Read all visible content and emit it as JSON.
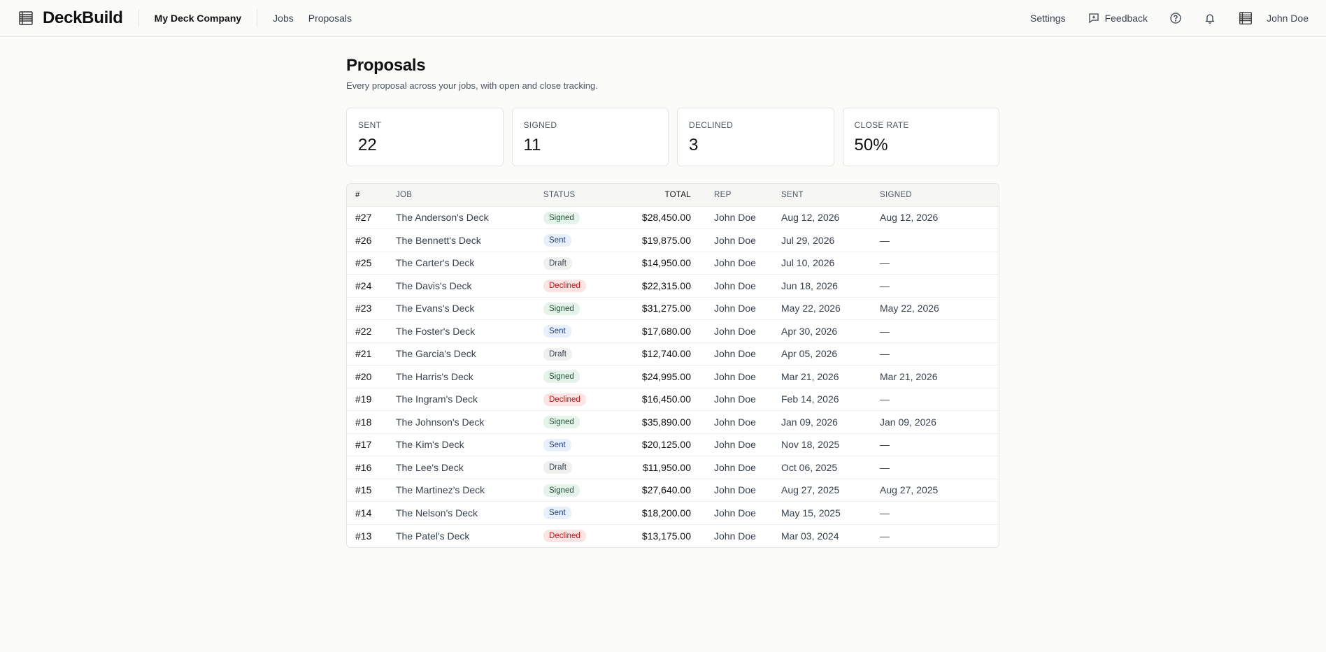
{
  "app": {
    "name": "DeckBuild",
    "company": "My Deck Company"
  },
  "nav": {
    "jobs": "Jobs",
    "proposals": "Proposals"
  },
  "header_right": {
    "settings": "Settings",
    "feedback": "Feedback",
    "user": "John Doe"
  },
  "page": {
    "title": "Proposals",
    "subtitle": "Every proposal across your jobs, with open and close tracking."
  },
  "stats": [
    {
      "label": "SENT",
      "value": "22"
    },
    {
      "label": "SIGNED",
      "value": "11"
    },
    {
      "label": "DECLINED",
      "value": "3"
    },
    {
      "label": "CLOSE RATE",
      "value": "50%"
    }
  ],
  "table": {
    "columns": [
      "#",
      "JOB",
      "STATUS",
      "TOTAL",
      "REP",
      "SENT",
      "SIGNED"
    ],
    "rows": [
      {
        "num": "#27",
        "job": "The Anderson's Deck",
        "status": "Signed",
        "total": "$28,450.00",
        "rep": "John Doe",
        "sent": "Aug 12, 2026",
        "signed": "Aug 12, 2026"
      },
      {
        "num": "#26",
        "job": "The Bennett's Deck",
        "status": "Sent",
        "total": "$19,875.00",
        "rep": "John Doe",
        "sent": "Jul 29, 2026",
        "signed": "—"
      },
      {
        "num": "#25",
        "job": "The Carter's Deck",
        "status": "Draft",
        "total": "$14,950.00",
        "rep": "John Doe",
        "sent": "Jul 10, 2026",
        "signed": "—"
      },
      {
        "num": "#24",
        "job": "The Davis's Deck",
        "status": "Declined",
        "total": "$22,315.00",
        "rep": "John Doe",
        "sent": "Jun 18, 2026",
        "signed": "—"
      },
      {
        "num": "#23",
        "job": "The Evans's Deck",
        "status": "Signed",
        "total": "$31,275.00",
        "rep": "John Doe",
        "sent": "May 22, 2026",
        "signed": "May 22, 2026"
      },
      {
        "num": "#22",
        "job": "The Foster's Deck",
        "status": "Sent",
        "total": "$17,680.00",
        "rep": "John Doe",
        "sent": "Apr 30, 2026",
        "signed": "—"
      },
      {
        "num": "#21",
        "job": "The Garcia's Deck",
        "status": "Draft",
        "total": "$12,740.00",
        "rep": "John Doe",
        "sent": "Apr 05, 2026",
        "signed": "—"
      },
      {
        "num": "#20",
        "job": "The Harris's Deck",
        "status": "Signed",
        "total": "$24,995.00",
        "rep": "John Doe",
        "sent": "Mar 21, 2026",
        "signed": "Mar 21, 2026"
      },
      {
        "num": "#19",
        "job": "The Ingram's Deck",
        "status": "Declined",
        "total": "$16,450.00",
        "rep": "John Doe",
        "sent": "Feb 14, 2026",
        "signed": "—"
      },
      {
        "num": "#18",
        "job": "The Johnson's Deck",
        "status": "Signed",
        "total": "$35,890.00",
        "rep": "John Doe",
        "sent": "Jan 09, 2026",
        "signed": "Jan 09, 2026"
      },
      {
        "num": "#17",
        "job": "The Kim's Deck",
        "status": "Sent",
        "total": "$20,125.00",
        "rep": "John Doe",
        "sent": "Nov 18, 2025",
        "signed": "—"
      },
      {
        "num": "#16",
        "job": "The Lee's Deck",
        "status": "Draft",
        "total": "$11,950.00",
        "rep": "John Doe",
        "sent": "Oct 06, 2025",
        "signed": "—"
      },
      {
        "num": "#15",
        "job": "The Martinez's Deck",
        "status": "Signed",
        "total": "$27,640.00",
        "rep": "John Doe",
        "sent": "Aug 27, 2025",
        "signed": "Aug 27, 2025"
      },
      {
        "num": "#14",
        "job": "The Nelson's Deck",
        "status": "Sent",
        "total": "$18,200.00",
        "rep": "John Doe",
        "sent": "May 15, 2025",
        "signed": "—"
      },
      {
        "num": "#13",
        "job": "The Patel's Deck",
        "status": "Declined",
        "total": "$13,175.00",
        "rep": "John Doe",
        "sent": "Mar 03, 2024",
        "signed": "—"
      }
    ]
  },
  "icons": {
    "brand": "deck-logo-icon",
    "feedback": "feedback-icon",
    "help": "help-icon",
    "notifications": "bell-icon",
    "user": "user-avatar-icon"
  }
}
